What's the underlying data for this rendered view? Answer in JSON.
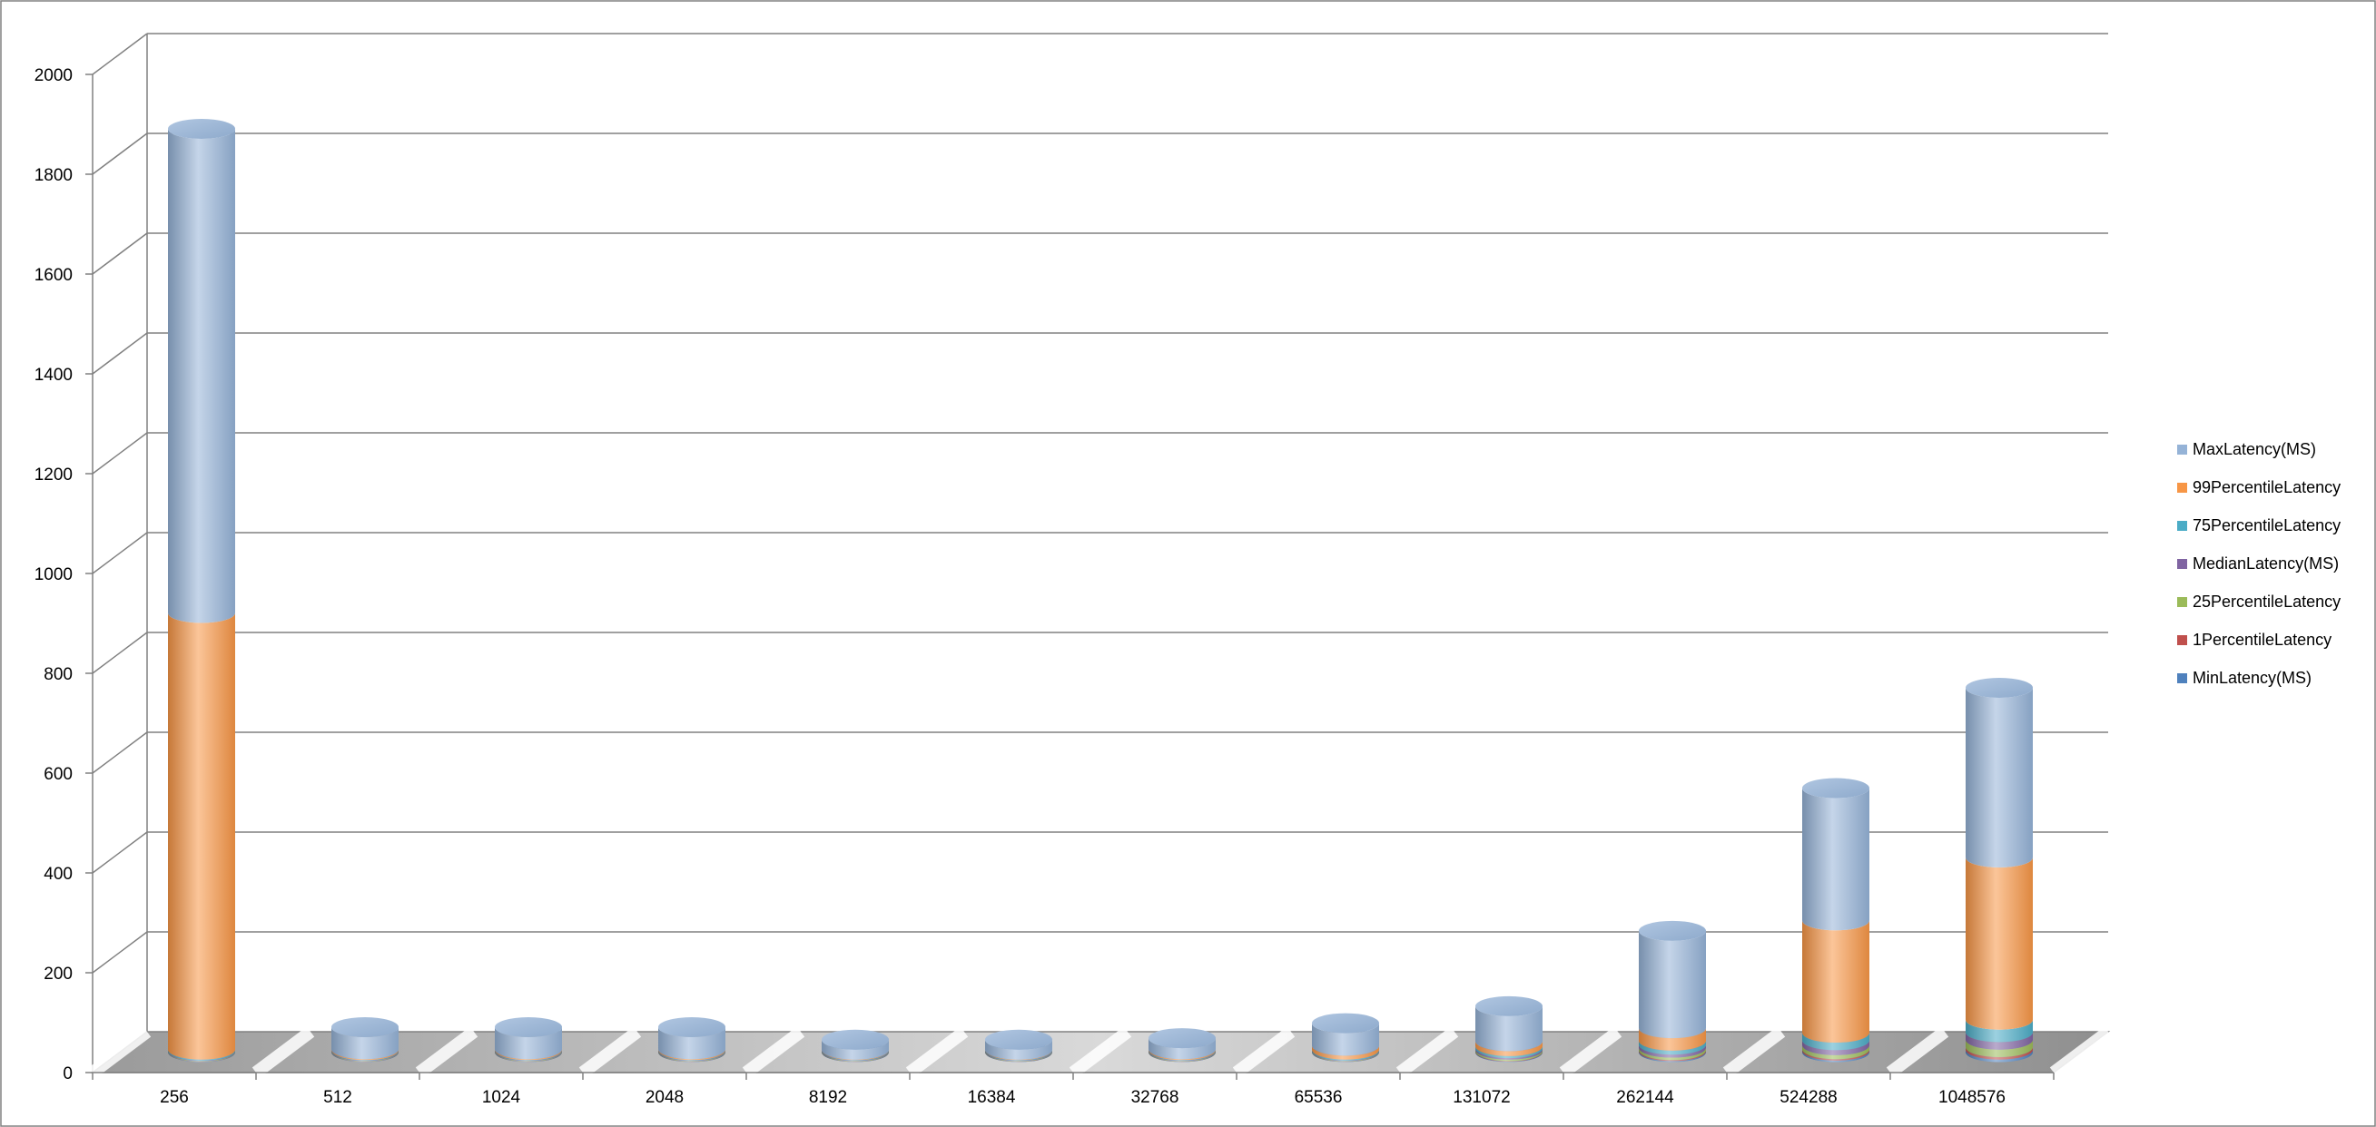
{
  "chart_data": {
    "type": "bar",
    "stacked": true,
    "style": "3d-cylinder",
    "title": "",
    "xlabel": "",
    "ylabel": "",
    "ylim": [
      0,
      2000
    ],
    "yticks": [
      0,
      200,
      400,
      600,
      800,
      1000,
      1200,
      1400,
      1600,
      1800,
      2000
    ],
    "grid": true,
    "legend_position": "right",
    "categories": [
      "256",
      "512",
      "1024",
      "2048",
      "8192",
      "16384",
      "32768",
      "65536",
      "131072",
      "262144",
      "524288",
      "1048576"
    ],
    "series": [
      {
        "name": "MinLatency(MS)",
        "color": "#4f81bd",
        "values": [
          0.5,
          0.5,
          0.5,
          0.5,
          0.5,
          0.5,
          0.5,
          0.5,
          1,
          2,
          3,
          5
        ]
      },
      {
        "name": "1PercentileLatency",
        "color": "#c0504d",
        "values": [
          0.5,
          0.5,
          0.5,
          0.5,
          0.5,
          0.5,
          0.5,
          0.5,
          1,
          2,
          3,
          5
        ]
      },
      {
        "name": "25PercentileLatency",
        "color": "#9bbb59",
        "values": [
          1,
          1,
          1,
          1,
          1,
          1,
          1,
          1,
          3,
          5,
          8,
          15
        ]
      },
      {
        "name": "MedianLatency(MS)",
        "color": "#8064a2",
        "values": [
          1,
          1,
          1,
          1,
          1,
          1,
          1,
          1,
          3,
          6,
          10,
          15
        ]
      },
      {
        "name": "75PercentileLatency",
        "color": "#4bacc6",
        "values": [
          2,
          1,
          1,
          1,
          1,
          1,
          1,
          2,
          4,
          8,
          15,
          25
        ]
      },
      {
        "name": "99PercentileLatency",
        "color": "#f79646",
        "values": [
          875,
          2,
          2,
          2,
          1,
          1,
          2,
          8,
          10,
          25,
          225,
          325
        ]
      },
      {
        "name": "MaxLatency(MS)",
        "color": "#95b3d7",
        "values": [
          970,
          44,
          44,
          44,
          20,
          20,
          22,
          45,
          70,
          195,
          265,
          340
        ]
      }
    ]
  }
}
